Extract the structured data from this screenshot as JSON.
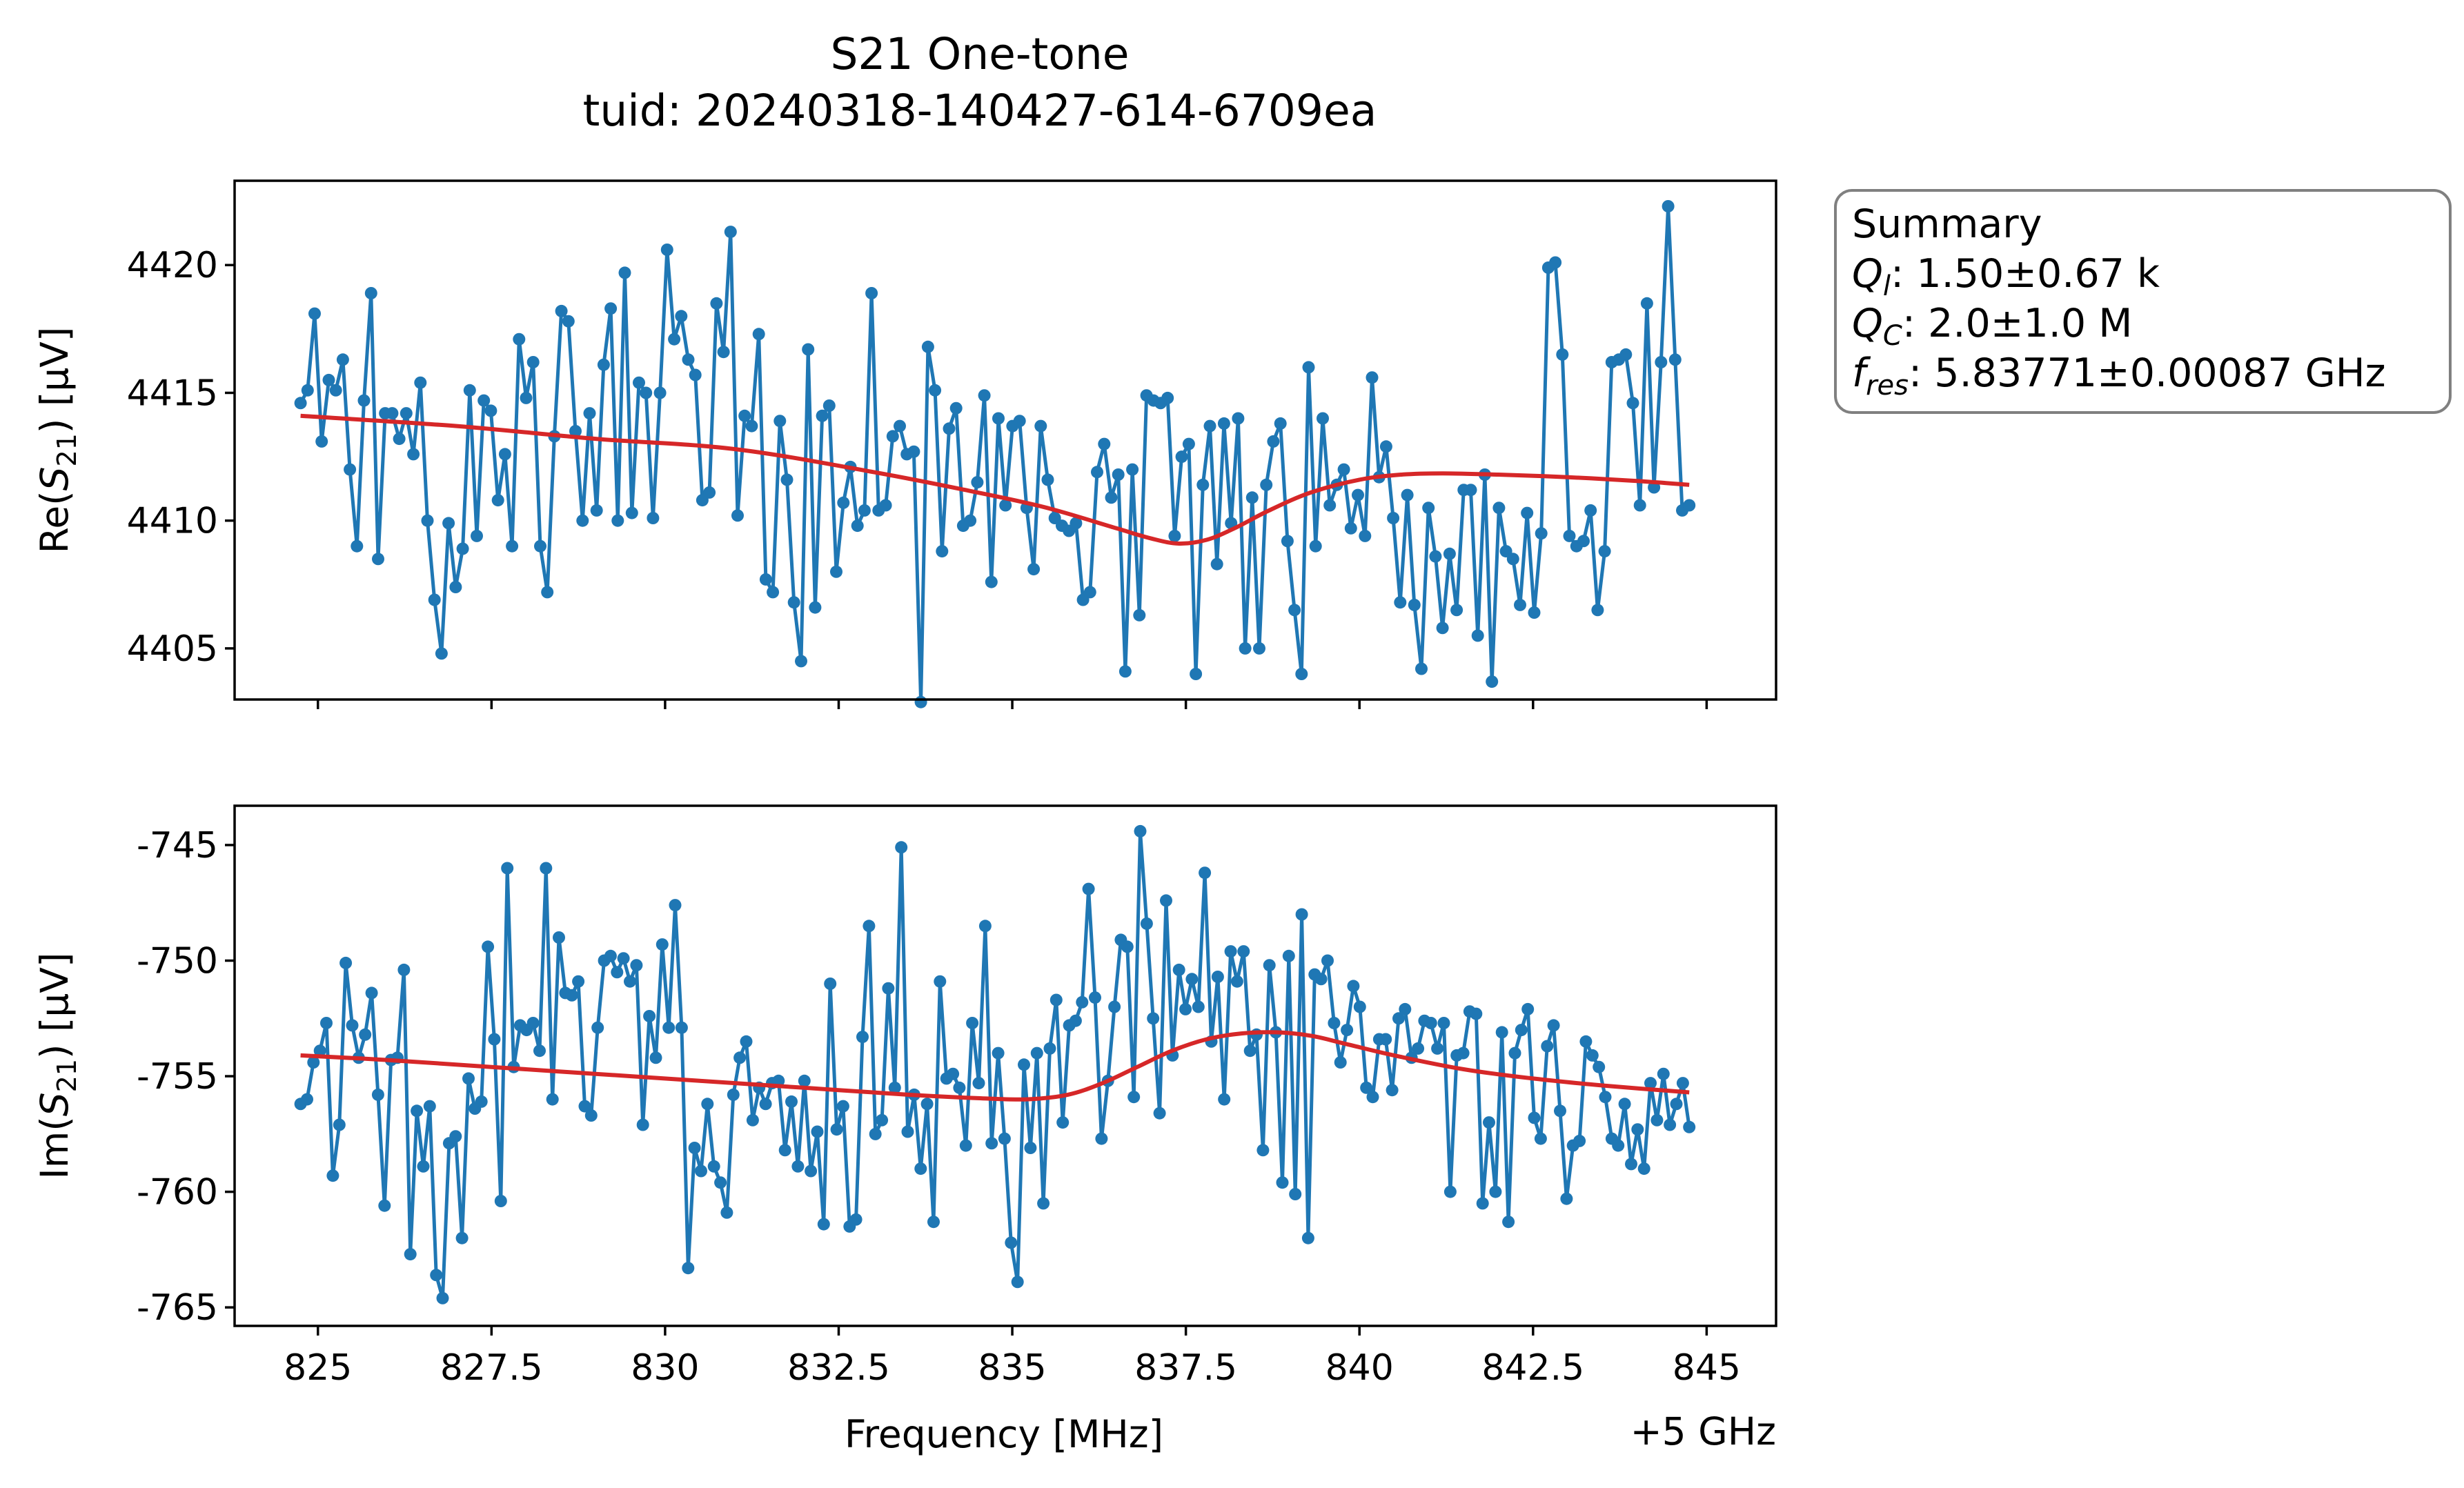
{
  "figure": {
    "title_line1": "S21 One-tone",
    "title_line2": "tuid: 20240318-140427-614-6709ea",
    "x_axis_label": "Frequency [MHz]",
    "x_offset_label": "+5 GHz",
    "x_tick_labels": [
      "825",
      "827.5",
      "830",
      "832.5",
      "835",
      "837.5",
      "840",
      "842.5",
      "845"
    ]
  },
  "summary": {
    "heading": "Summary",
    "ql_symbol": "Q",
    "ql_sub": "l",
    "ql_value": ": 1.50±0.67 k",
    "qc_symbol": "Q",
    "qc_sub": "C",
    "qc_value": ": 2.0±1.0 M",
    "fres_symbol": "f",
    "fres_sub": "res",
    "fres_value": ": 5.83771±0.00087 GHz"
  },
  "chart_data": [
    {
      "type": "line",
      "panel": "top",
      "ylabel_prefix": "Re(",
      "ylabel_sym": "S",
      "ylabel_sub": "21",
      "ylabel_suffix": ") [μV]",
      "y_tick_labels": [
        "4420",
        "4415",
        "4410",
        "4405"
      ],
      "xlim": [
        823.8,
        846.0
      ],
      "ylim": [
        4403.0,
        4423.3
      ],
      "y_ticks": [
        4420,
        4415,
        4410,
        4405
      ],
      "series": [
        {
          "role": "data",
          "color": "#1f77b4",
          "marker": "circle",
          "x_start": 824.75,
          "x_end": 844.75,
          "values": [
            4414.6,
            4415.1,
            4418.1,
            4413.1,
            4415.5,
            4415.1,
            4416.3,
            4412.0,
            4409.0,
            4414.7,
            4418.9,
            4408.5,
            4414.2,
            4414.2,
            4413.2,
            4414.2,
            4412.6,
            4415.4,
            4410.0,
            4406.9,
            4404.8,
            4409.9,
            4407.4,
            4408.9,
            4415.1,
            4409.4,
            4414.7,
            4414.3,
            4410.8,
            4412.6,
            4409.0,
            4417.1,
            4414.8,
            4416.2,
            4409.0,
            4407.2,
            4413.3,
            4418.2,
            4417.8,
            4413.5,
            4410.0,
            4414.2,
            4410.4,
            4416.1,
            4418.3,
            4410.0,
            4419.7,
            4410.3,
            4415.4,
            4415.0,
            4410.1,
            4415.0,
            4420.6,
            4417.1,
            4418.0,
            4416.3,
            4415.7,
            4410.8,
            4411.1,
            4418.5,
            4416.6,
            4421.3,
            4410.2,
            4414.1,
            4413.7,
            4417.3,
            4407.7,
            4407.2,
            4413.9,
            4411.6,
            4406.8,
            4404.5,
            4416.7,
            4406.6,
            4414.1,
            4414.5,
            4408.0,
            4410.7,
            4412.1,
            4409.8,
            4410.4,
            4418.9,
            4410.4,
            4410.6,
            4413.3,
            4413.7,
            4412.6,
            4412.7,
            4402.9,
            4416.8,
            4415.1,
            4408.8,
            4413.6,
            4414.4,
            4409.8,
            4410.0,
            4411.5,
            4414.9,
            4407.6,
            4414.0,
            4410.6,
            4413.7,
            4413.9,
            4410.5,
            4408.1,
            4413.7,
            4411.6,
            4410.1,
            4409.8,
            4409.6,
            4409.9,
            4406.9,
            4407.2,
            4411.9,
            4413.0,
            4410.9,
            4411.8,
            4404.1,
            4412.0,
            4406.3,
            4414.9,
            4414.7,
            4414.6,
            4414.8,
            4409.4,
            4412.5,
            4413.0,
            4404.0,
            4411.4,
            4413.7,
            4408.3,
            4413.8,
            4409.9,
            4414.0,
            4405.0,
            4410.9,
            4405.0,
            4411.4,
            4413.1,
            4413.8,
            4409.2,
            4406.5,
            4404.0,
            4416.0,
            4409.0,
            4414.0,
            4410.6,
            4411.4,
            4412.0,
            4409.7,
            4411.0,
            4409.4,
            4415.6,
            4411.7,
            4412.9,
            4410.1,
            4406.8,
            4411.0,
            4406.7,
            4404.2,
            4410.5,
            4408.6,
            4405.8,
            4408.7,
            4406.5,
            4411.2,
            4411.2,
            4405.5,
            4411.8,
            4403.7,
            4410.5,
            4408.8,
            4408.5,
            4406.7,
            4410.3,
            4406.4,
            4409.5,
            4419.9,
            4420.1,
            4416.5,
            4409.4,
            4409.0,
            4409.2,
            4410.4,
            4406.5,
            4408.8,
            4416.2,
            4416.3,
            4416.5,
            4414.6,
            4410.6,
            4418.5,
            4411.3,
            4416.2,
            4422.3,
            4416.3,
            4410.4,
            4410.6
          ]
        },
        {
          "role": "fit",
          "color": "#d62728",
          "x": [
            824.75,
            827.0,
            829.0,
            831.0,
            833.0,
            834.5,
            835.5,
            836.5,
            837.0,
            837.4,
            837.8,
            838.2,
            838.7,
            839.3,
            840.0,
            840.6,
            841.2,
            842.0,
            843.0,
            844.0,
            844.75
          ],
          "values": [
            4414.1,
            4413.7,
            4413.2,
            4412.8,
            4411.9,
            4411.1,
            4410.5,
            4409.7,
            4409.3,
            4409.1,
            4409.25,
            4409.7,
            4410.4,
            4411.1,
            4411.6,
            4411.8,
            4411.85,
            4411.8,
            4411.7,
            4411.55,
            4411.4
          ]
        }
      ]
    },
    {
      "type": "line",
      "panel": "bottom",
      "ylabel_prefix": "Im(",
      "ylabel_sym": "S",
      "ylabel_sub": "21",
      "ylabel_suffix": ") [μV]",
      "y_tick_labels": [
        "-745",
        "-750",
        "-755",
        "-760",
        "-765"
      ],
      "xlim": [
        823.8,
        846.0
      ],
      "ylim": [
        -765.8,
        -743.3
      ],
      "y_ticks": [
        -745,
        -750,
        -755,
        -760,
        -765
      ],
      "series": [
        {
          "role": "data",
          "color": "#1f77b4",
          "marker": "circle",
          "x_start": 824.75,
          "x_end": 844.75,
          "values": [
            -756.2,
            -756.0,
            -754.4,
            -753.9,
            -752.7,
            -759.3,
            -757.1,
            -750.1,
            -752.8,
            -754.2,
            -753.2,
            -751.4,
            -755.8,
            -760.6,
            -754.3,
            -754.2,
            -750.4,
            -762.7,
            -756.5,
            -758.9,
            -756.3,
            -763.6,
            -764.6,
            -757.9,
            -757.6,
            -762.0,
            -755.1,
            -756.4,
            -756.1,
            -749.4,
            -753.4,
            -760.4,
            -746.0,
            -754.6,
            -752.8,
            -753.0,
            -752.7,
            -753.9,
            -746.0,
            -756.0,
            -749.0,
            -751.4,
            -751.5,
            -750.9,
            -756.3,
            -756.7,
            -752.9,
            -750.0,
            -749.8,
            -750.5,
            -749.9,
            -750.9,
            -750.2,
            -757.1,
            -752.4,
            -754.2,
            -749.3,
            -752.9,
            -747.6,
            -752.9,
            -763.3,
            -758.1,
            -759.1,
            -756.2,
            -758.9,
            -759.6,
            -760.9,
            -755.8,
            -754.2,
            -753.5,
            -756.9,
            -755.5,
            -756.2,
            -755.3,
            -755.2,
            -758.2,
            -756.1,
            -758.9,
            -755.2,
            -759.1,
            -757.4,
            -761.4,
            -751.0,
            -757.3,
            -756.3,
            -761.5,
            -761.2,
            -753.3,
            -748.5,
            -757.5,
            -756.9,
            -751.2,
            -755.5,
            -745.1,
            -757.4,
            -755.8,
            -759.0,
            -756.2,
            -761.3,
            -750.9,
            -755.1,
            -754.9,
            -755.5,
            -758.0,
            -752.7,
            -755.3,
            -748.5,
            -757.9,
            -754.0,
            -757.7,
            -762.2,
            -763.9,
            -754.5,
            -758.1,
            -754.0,
            -760.5,
            -753.8,
            -751.7,
            -757.0,
            -752.8,
            -752.6,
            -751.8,
            -746.9,
            -751.6,
            -757.7,
            -755.2,
            -752.0,
            -749.1,
            -749.4,
            -755.9,
            -744.4,
            -748.4,
            -752.5,
            -756.6,
            -747.4,
            -754.1,
            -750.4,
            -752.1,
            -750.8,
            -752.0,
            -746.2,
            -753.5,
            -750.7,
            -756.0,
            -749.6,
            -750.9,
            -749.6,
            -753.9,
            -753.2,
            -758.2,
            -750.2,
            -753.1,
            -759.6,
            -749.8,
            -760.1,
            -748.0,
            -762.0,
            -750.6,
            -750.8,
            -750.0,
            -752.7,
            -754.4,
            -753.0,
            -751.1,
            -752.0,
            -755.5,
            -755.9,
            -753.4,
            -753.4,
            -755.6,
            -752.5,
            -752.1,
            -754.2,
            -753.8,
            -752.6,
            -752.7,
            -753.8,
            -752.7,
            -760.0,
            -754.1,
            -754.0,
            -752.2,
            -752.3,
            -760.5,
            -757.0,
            -760.0,
            -753.1,
            -761.3,
            -754.0,
            -753.0,
            -752.1,
            -756.8,
            -757.7,
            -753.7,
            -752.8,
            -756.5,
            -760.3,
            -758.0,
            -757.8,
            -753.5,
            -754.1,
            -754.6,
            -755.9,
            -757.7,
            -758.0,
            -756.2,
            -758.8,
            -757.3,
            -759.0,
            -755.3,
            -756.9,
            -754.9,
            -757.1,
            -756.2,
            -755.3,
            -757.2
          ]
        },
        {
          "role": "fit",
          "color": "#d62728",
          "x": [
            824.75,
            826.0,
            827.5,
            829.0,
            830.5,
            832.0,
            833.5,
            834.5,
            835.2,
            835.8,
            836.3,
            836.8,
            837.3,
            837.8,
            838.3,
            838.8,
            839.3,
            839.8,
            840.5,
            841.5,
            842.5,
            843.5,
            844.75
          ],
          "values": [
            -754.1,
            -754.3,
            -754.6,
            -754.9,
            -755.2,
            -755.5,
            -755.8,
            -755.95,
            -756.0,
            -755.8,
            -755.3,
            -754.6,
            -753.9,
            -753.4,
            -753.15,
            -753.1,
            -753.25,
            -753.6,
            -754.1,
            -754.7,
            -755.1,
            -755.4,
            -755.7
          ]
        }
      ]
    }
  ]
}
